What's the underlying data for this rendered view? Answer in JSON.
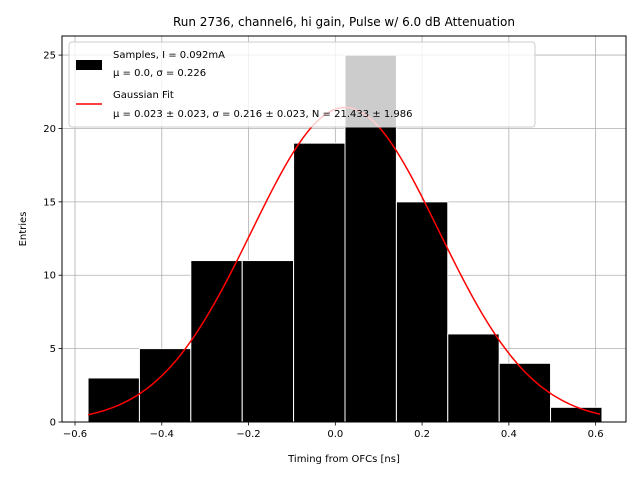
{
  "chart_data": {
    "type": "bar",
    "title": "Run 2736, channel6, hi gain, Pulse w/ 6.0 dB Attenuation",
    "xlabel": "Timing from OFCs [ns]",
    "ylabel": "Entries",
    "xlim": [
      -0.63,
      0.67
    ],
    "ylim": [
      0,
      26.3
    ],
    "grid": true,
    "x_ticks": [
      -0.6,
      -0.4,
      -0.2,
      0.0,
      0.2,
      0.4,
      0.6
    ],
    "x_tick_labels": [
      "−0.6",
      "−0.4",
      "−0.2",
      "0.0",
      "0.2",
      "0.4",
      "0.6"
    ],
    "y_ticks": [
      0,
      5,
      10,
      15,
      20,
      25
    ],
    "y_tick_labels": [
      "0",
      "5",
      "10",
      "15",
      "20",
      "25"
    ],
    "histogram": {
      "name": "Samples, I = 0.092mA",
      "stats_label": "μ = 0.0, σ = 0.226",
      "color": "#000000",
      "bin_edges": [
        -0.57,
        -0.4515,
        -0.3331,
        -0.2146,
        -0.0962,
        0.0223,
        0.1408,
        0.2592,
        0.3777,
        0.4961,
        0.6146
      ],
      "values": [
        3,
        5,
        11,
        11,
        19,
        25,
        15,
        6,
        4,
        1
      ]
    },
    "fit": {
      "name": "Gaussian Fit",
      "params_label": "μ = 0.023 ± 0.023, σ = 0.216 ± 0.023, N = 21.433 ± 1.986",
      "color": "#ff0000",
      "mu": 0.023,
      "sigma": 0.216,
      "N": 21.433,
      "x_range": [
        -0.57,
        0.61
      ]
    },
    "legend_position": "top-left"
  }
}
